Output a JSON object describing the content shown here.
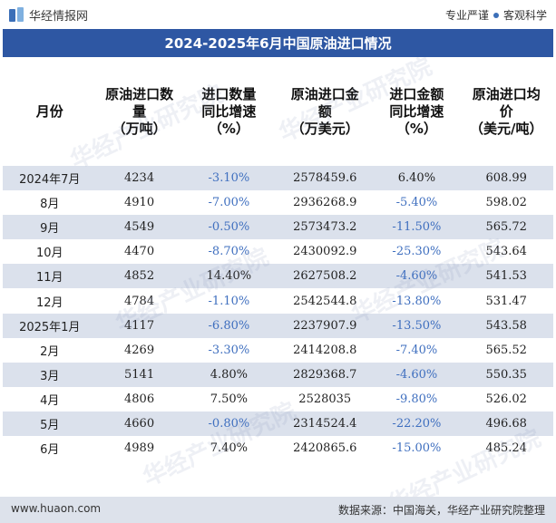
{
  "brand": {
    "name": "华经情报网",
    "slogan_left": "专业严谨",
    "slogan_right": "客观科学"
  },
  "title": "2024-2025年6月中国原油进口情况",
  "headers": [
    "月份",
    "原油进口数\n量\n（万吨）",
    "进口数量\n同比增速\n（%）",
    "原油进口金\n额\n（万美元）",
    "进口金额\n同比增速\n（%）",
    "原油进口均\n价\n（美元/吨）"
  ],
  "rows": [
    [
      "2024年7月",
      "4234",
      "-3.10%",
      "2578459.6",
      "6.40%",
      "608.99"
    ],
    [
      "8月",
      "4910",
      "-7.00%",
      "2936268.9",
      "-5.40%",
      "598.02"
    ],
    [
      "9月",
      "4549",
      "-0.50%",
      "2573473.2",
      "-11.50%",
      "565.72"
    ],
    [
      "10月",
      "4470",
      "-8.70%",
      "2430092.9",
      "-25.30%",
      "543.64"
    ],
    [
      "11月",
      "4852",
      "14.40%",
      "2627508.2",
      "-4.60%",
      "541.53"
    ],
    [
      "12月",
      "4784",
      "-1.10%",
      "2542544.8",
      "-13.80%",
      "531.47"
    ],
    [
      "2025年1月",
      "4117",
      "-6.80%",
      "2237907.9",
      "-13.50%",
      "543.58"
    ],
    [
      "2月",
      "4269",
      "-3.30%",
      "2414208.8",
      "-7.40%",
      "565.52"
    ],
    [
      "3月",
      "5141",
      "4.80%",
      "2829368.7",
      "-4.60%",
      "550.35"
    ],
    [
      "4月",
      "4806",
      "7.50%",
      "2528035",
      "-9.80%",
      "526.02"
    ],
    [
      "5月",
      "4660",
      "-0.80%",
      "2314524.4",
      "-22.20%",
      "496.68"
    ],
    [
      "6月",
      "4989",
      "7.40%",
      "2420865.6",
      "-15.00%",
      "485.24"
    ]
  ],
  "footer": {
    "website": "www.huaon.com",
    "source": "数据来源：中国海关，华经产业研究院整理"
  },
  "colors": {
    "title_bg": "#2e57a3",
    "stripe": "#dbe1ec",
    "negative": "#3f6fbf"
  }
}
